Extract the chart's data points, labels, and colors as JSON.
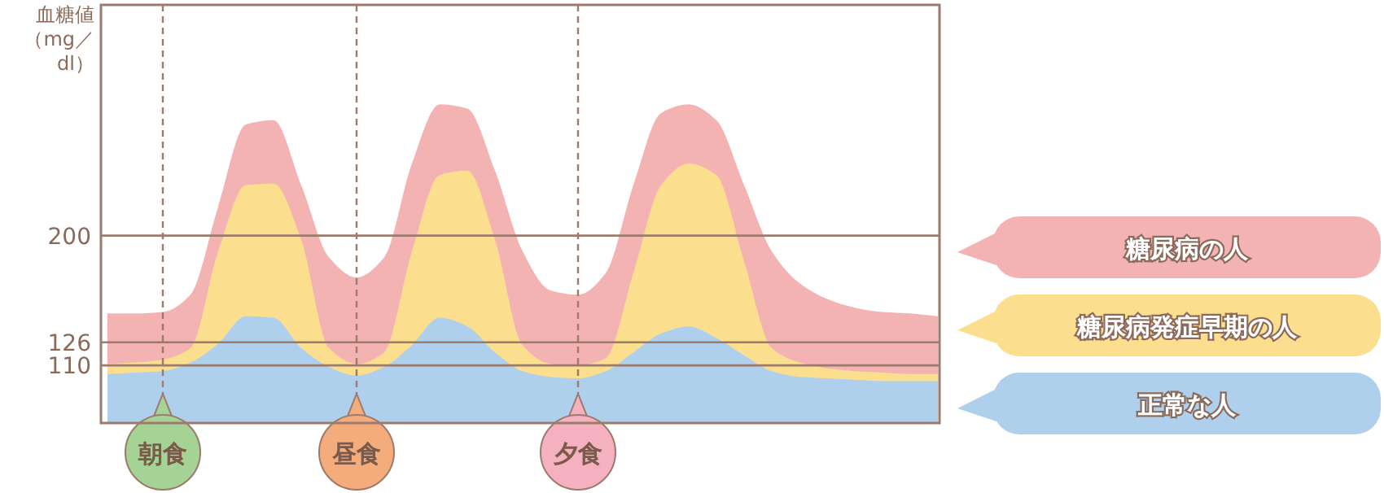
{
  "chart_data": {
    "type": "area",
    "ylabel": "血糖値（mg／dl）",
    "categories": [
      null,
      null,
      null,
      null,
      null,
      null,
      null,
      null,
      null,
      null,
      null,
      null,
      null,
      null,
      null,
      null,
      null,
      null,
      null,
      null,
      null,
      null,
      null,
      null,
      null,
      null,
      null,
      null,
      null,
      null,
      null
    ],
    "series": [
      {
        "name": "糖尿病の人",
        "color": "#f4b3b3",
        "values": [
          146,
          146,
          147,
          159,
          220,
          277,
          280,
          235,
          185,
          171,
          185,
          250,
          291,
          288,
          245,
          189,
          162,
          159,
          174,
          235,
          285,
          291,
          280,
          235,
          189,
          167,
          156,
          150,
          147,
          146,
          144
        ]
      },
      {
        "name": "糖尿病発症早期の人",
        "color": "#fbdf8f",
        "values": [
          111,
          112,
          114,
          122,
          189,
          235,
          236,
          197,
          122,
          111,
          119,
          189,
          242,
          245,
          197,
          124,
          111,
          110,
          115,
          174,
          235,
          250,
          242,
          182,
          122,
          112,
          108,
          106,
          105,
          104,
          104
        ]
      },
      {
        "name": "正常な人",
        "color": "#afd0ec",
        "values": [
          104,
          105,
          106,
          112,
          125,
          144,
          143,
          122,
          109,
          103,
          109,
          124,
          143,
          137,
          119,
          106,
          102,
          101,
          106,
          119,
          132,
          137,
          129,
          117,
          106,
          102,
          101,
          100,
          99,
          99,
          99
        ]
      }
    ],
    "ylim": [
      70,
      360
    ],
    "yticks": [
      110,
      126,
      200
    ],
    "tick_labels": "y",
    "grid": true,
    "legend": "right",
    "line_style": "dashed",
    "annotations": [
      "朝食",
      "昼食",
      "夕食"
    ]
  }
}
